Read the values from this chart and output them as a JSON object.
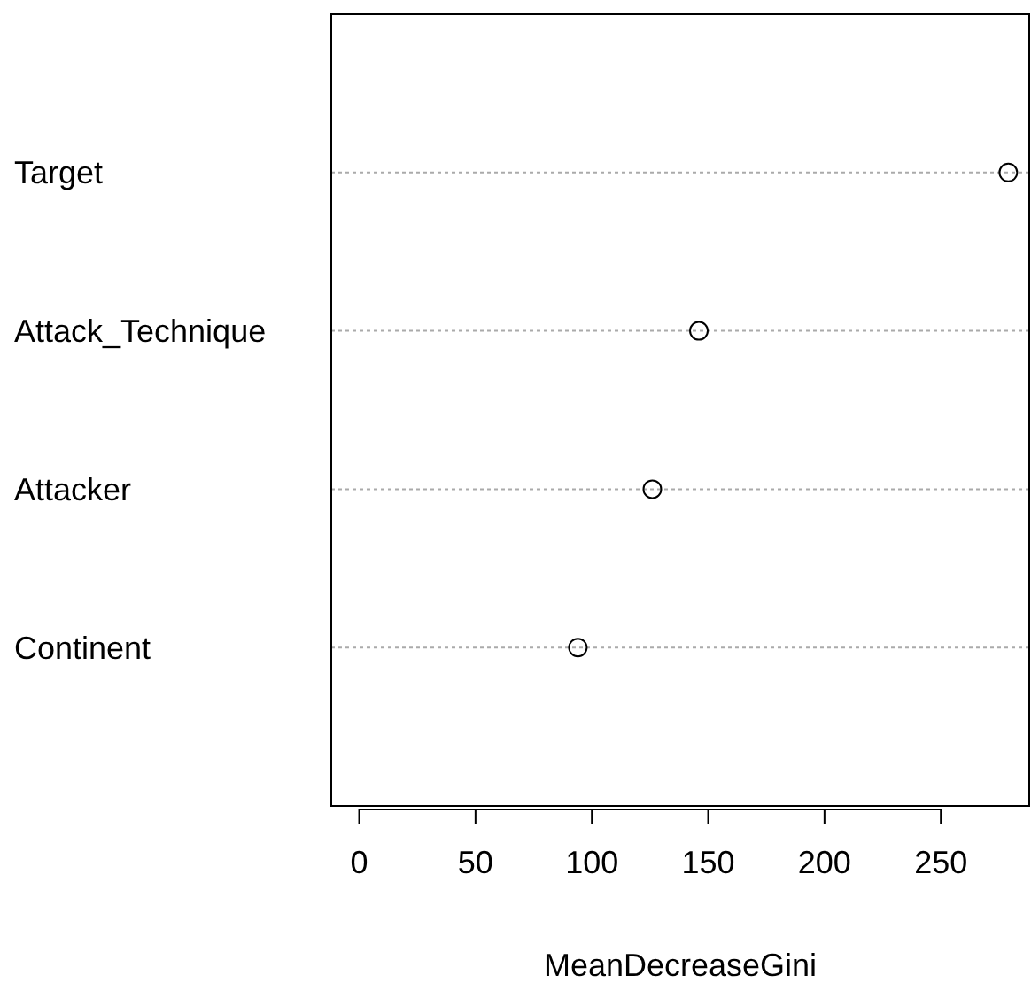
{
  "chart_data": {
    "type": "scatter",
    "orientation": "horizontal",
    "categories": [
      "Target",
      "Attack_Technique",
      "Attacker",
      "Continent"
    ],
    "values": [
      279,
      146,
      126,
      94
    ],
    "color": "#000000",
    "marker": "circle",
    "grid": "y",
    "xlim": [
      -12,
      288
    ],
    "xticks": [
      0,
      50,
      100,
      150,
      200,
      250
    ],
    "xlabel": "MeanDecreaseGini"
  }
}
